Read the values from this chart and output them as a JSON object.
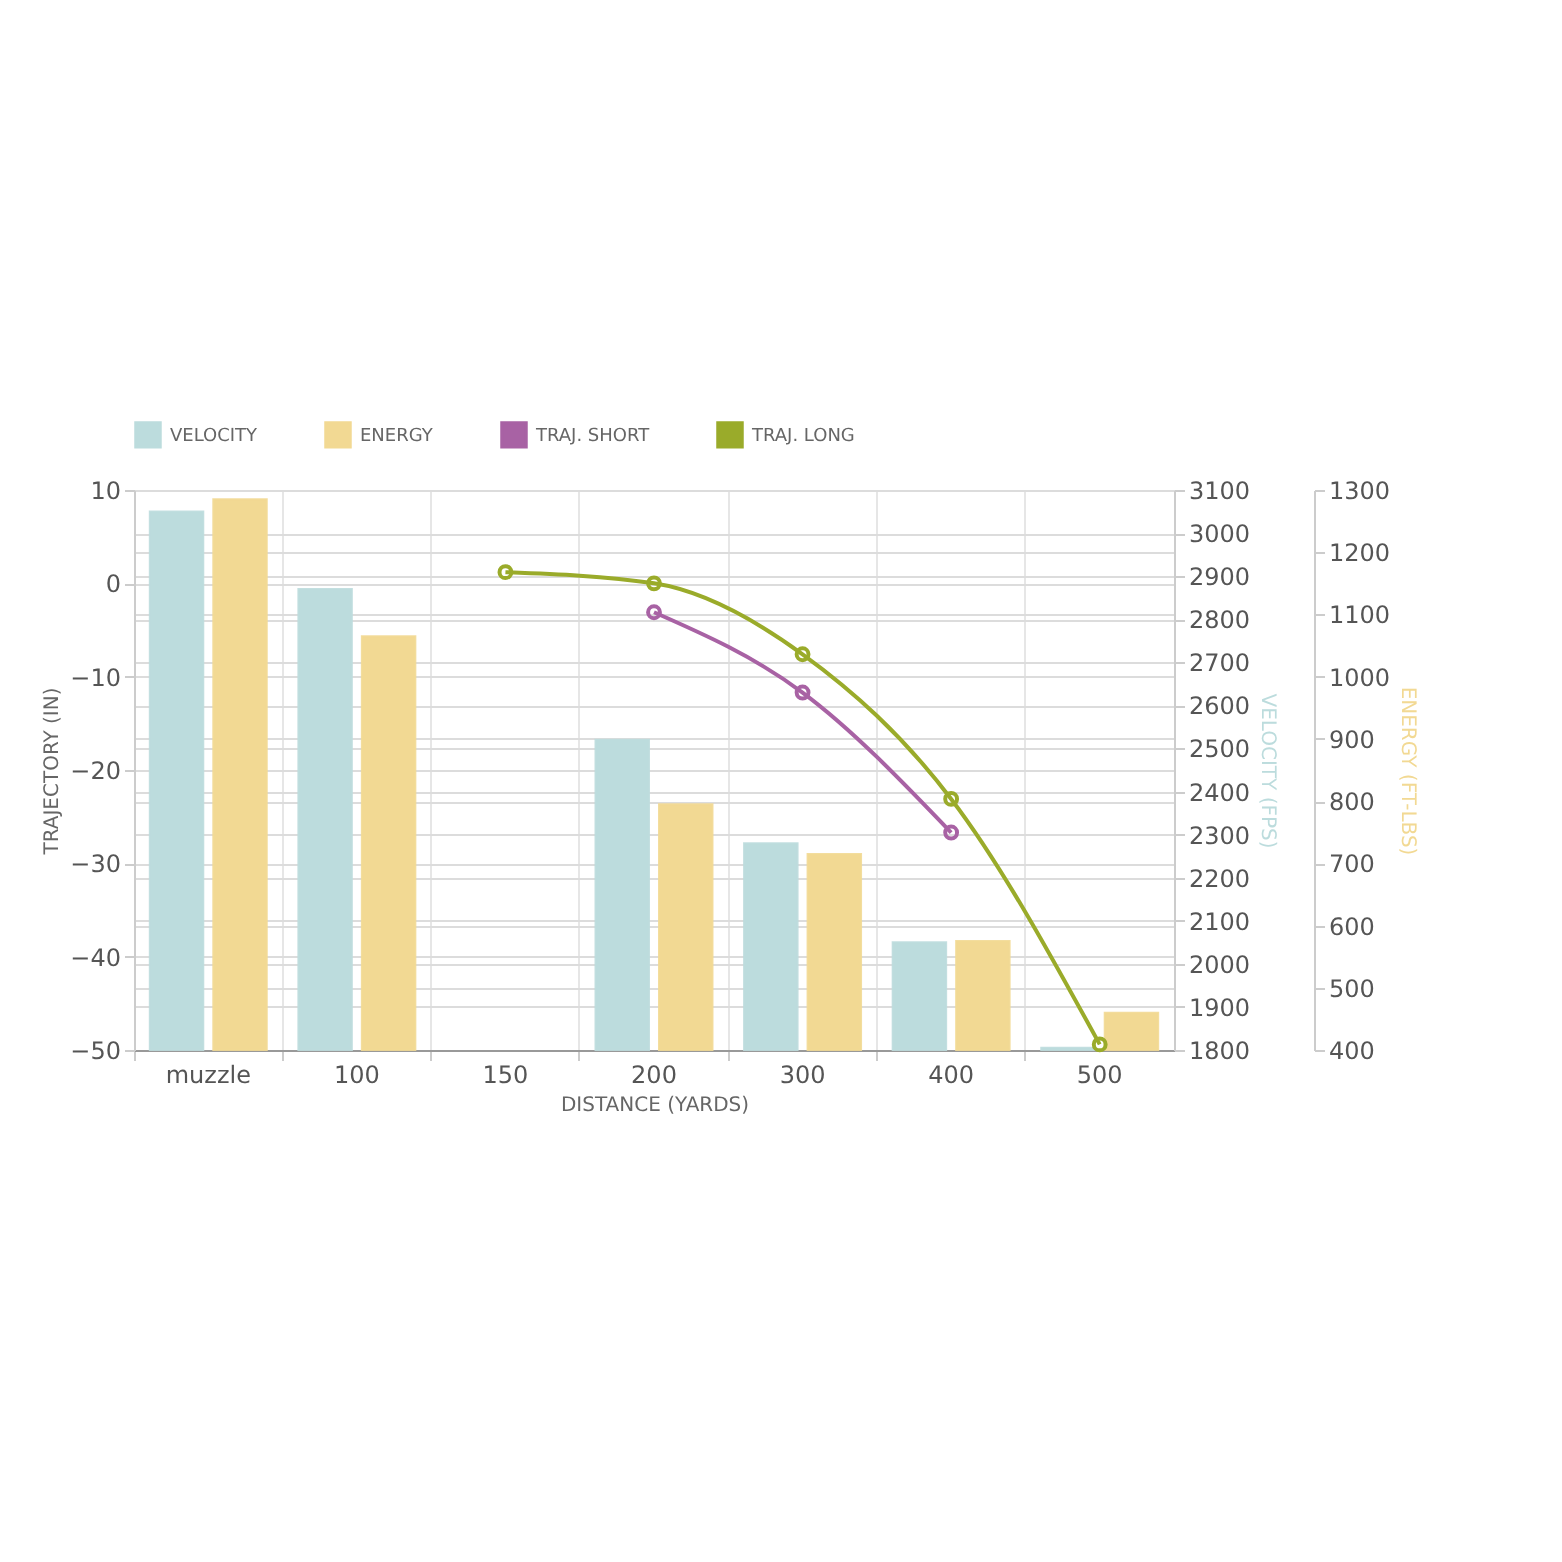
{
  "chart_data": {
    "type": "bar",
    "xlabel": "DISTANCE (YARDS)",
    "ylabel": "TRAJECTORY (IN)",
    "y2label": "VELOCITY (FPS)",
    "y3label": "ENERGY (FT-LBS)",
    "categories": [
      "muzzle",
      "100",
      "150",
      "200",
      "300",
      "400",
      "500"
    ],
    "series": [
      {
        "name": "VELOCITY",
        "axis": "y2",
        "color": "#bcdcdd",
        "values": [
          3050,
          2870,
          null,
          2520,
          2280,
          2050,
          1805
        ]
      },
      {
        "name": "ENERGY",
        "axis": "y3",
        "color": "#f2d993",
        "values": [
          1285,
          1065,
          null,
          795,
          715,
          575,
          460
        ]
      },
      {
        "name": "TRAJ. SHORT",
        "type": "line",
        "axis": "y",
        "color": "#a862a4",
        "values": [
          null,
          null,
          null,
          -3.1,
          -11.7,
          -26.7,
          null
        ]
      },
      {
        "name": "TRAJ. LONG",
        "type": "line",
        "axis": "y",
        "color": "#9aab2a",
        "values": [
          null,
          null,
          1.2,
          0,
          -7.6,
          -23.1,
          -49.4
        ]
      }
    ],
    "ylim": [
      -50,
      10
    ],
    "yticks": [
      -50,
      -40,
      -30,
      -20,
      -10,
      0,
      10
    ],
    "y2lim": [
      1800,
      3100
    ],
    "y2ticks": [
      1800,
      1900,
      2000,
      2100,
      2200,
      2300,
      2400,
      2500,
      2600,
      2700,
      2800,
      2900,
      3000,
      3100
    ],
    "y3lim": [
      400,
      1300
    ],
    "y3ticks": [
      400,
      500,
      600,
      700,
      800,
      900,
      1000,
      1100,
      1200,
      1300
    ],
    "grid": true,
    "legend": "top",
    "marker": "circle",
    "line_style": "solid"
  }
}
